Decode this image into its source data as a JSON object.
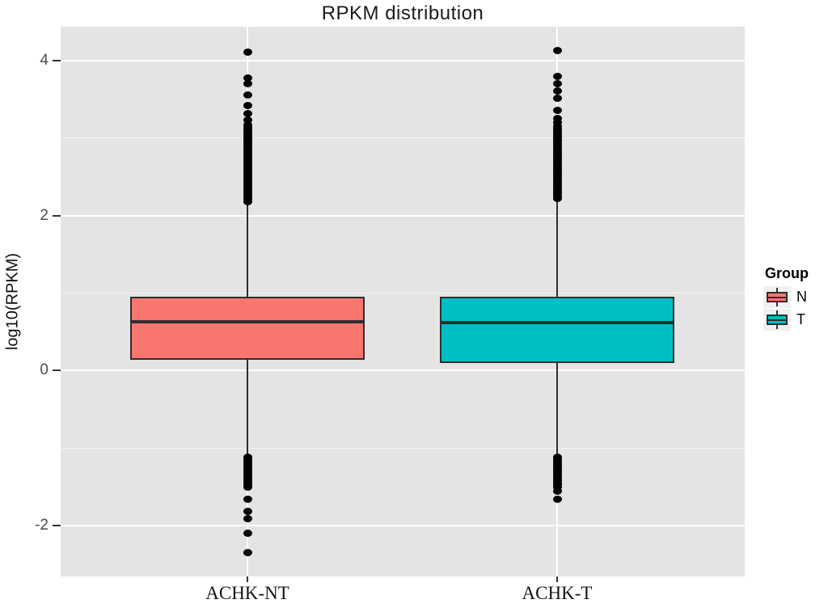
{
  "chart_data": {
    "type": "boxplot",
    "title": "RPKM distribution",
    "xlabel": "",
    "ylabel": "log10(RPKM)",
    "ylim": [
      -2.66,
      4.44
    ],
    "yticks": [
      {
        "value": 4,
        "label": "4"
      },
      {
        "value": 2,
        "label": "2"
      },
      {
        "value": 0,
        "label": "0"
      },
      {
        "value": -2,
        "label": "-2"
      }
    ],
    "minor_yticks": [
      3,
      1,
      -1
    ],
    "grid": "on",
    "panel_background": "#E4E4E4",
    "gridline_color": "#FFFFFF",
    "categories": [
      "ACHK-NT",
      "ACHK-T"
    ],
    "legend": {
      "title": "Group",
      "position": "right",
      "items": [
        {
          "label": "N",
          "color": "#F8766D"
        },
        {
          "label": "T",
          "color": "#00BFC4"
        }
      ]
    },
    "series": [
      {
        "category": "ACHK-NT",
        "group": "N",
        "color": "#F8766D",
        "q1": 0.14,
        "median": 0.63,
        "q3": 0.95,
        "whisker_low": -1.1,
        "whisker_high": 2.18,
        "outliers_high": [
          4.11,
          3.78,
          3.7,
          3.56,
          3.42,
          3.32,
          3.23
        ],
        "outlier_band_high": {
          "from": 3.17,
          "to": 2.18
        },
        "outliers_low": [
          -1.66,
          -1.82,
          -1.91,
          -2.1,
          -2.35
        ],
        "outlier_band_low": {
          "from": -1.12,
          "to": -1.52
        }
      },
      {
        "category": "ACHK-T",
        "group": "T",
        "color": "#00BFC4",
        "q1": 0.1,
        "median": 0.62,
        "q3": 0.95,
        "whisker_low": -1.1,
        "whisker_high": 2.21,
        "outliers_high": [
          4.13,
          3.8,
          3.7,
          3.61,
          3.52,
          3.36,
          3.25,
          3.2
        ],
        "outlier_band_high": {
          "from": 3.15,
          "to": 2.21
        },
        "outliers_low": [
          -1.56,
          -1.66
        ],
        "outlier_band_low": {
          "from": -1.12,
          "to": -1.51
        }
      }
    ]
  }
}
